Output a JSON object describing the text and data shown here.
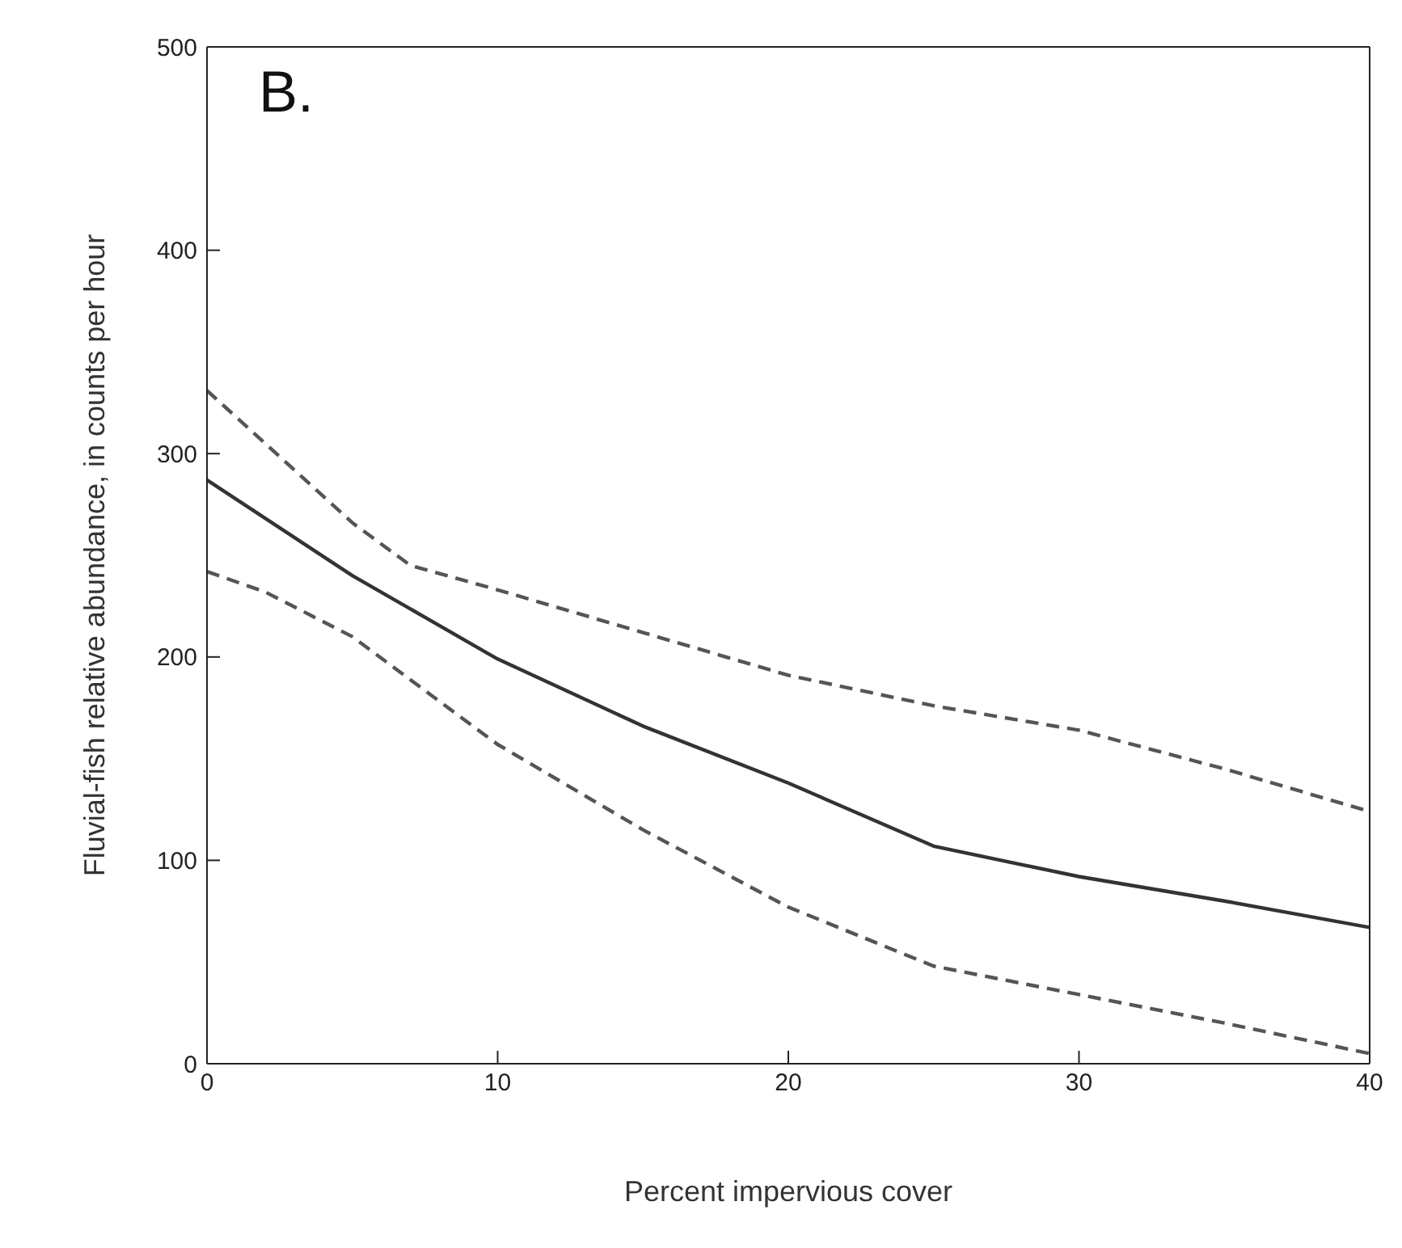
{
  "chart_data": {
    "type": "line",
    "xlabel": "Percent impervious cover",
    "ylabel": "Fluvial-fish relative abundance, in counts per hour",
    "annotations": [
      "B."
    ],
    "xlim": [
      0,
      40
    ],
    "xticks": [
      0,
      10,
      20,
      30,
      40
    ],
    "ylim": [
      0,
      500
    ],
    "yticks": [
      0,
      100,
      200,
      300,
      400,
      500
    ],
    "marker": "none",
    "series": [
      {
        "color": "#333333",
        "line_style": "solid",
        "x": [
          0,
          5,
          10,
          15,
          20,
          25,
          30,
          35,
          40
        ],
        "values": [
          287,
          240,
          199,
          166,
          138,
          107,
          92,
          80,
          67
        ]
      },
      {
        "color": "#555555",
        "line_style": "dashed",
        "x": [
          0,
          2,
          5,
          7,
          10,
          15,
          20,
          25,
          30,
          35,
          40
        ],
        "values": [
          331,
          305,
          266,
          245,
          233,
          212,
          191,
          176,
          164,
          145,
          124
        ]
      },
      {
        "color": "#555555",
        "line_style": "dashed",
        "x": [
          0,
          2,
          5,
          10,
          15,
          20,
          25,
          30,
          35,
          40
        ],
        "values": [
          242,
          232,
          210,
          157,
          115,
          77,
          48,
          34,
          20,
          5
        ]
      }
    ]
  }
}
